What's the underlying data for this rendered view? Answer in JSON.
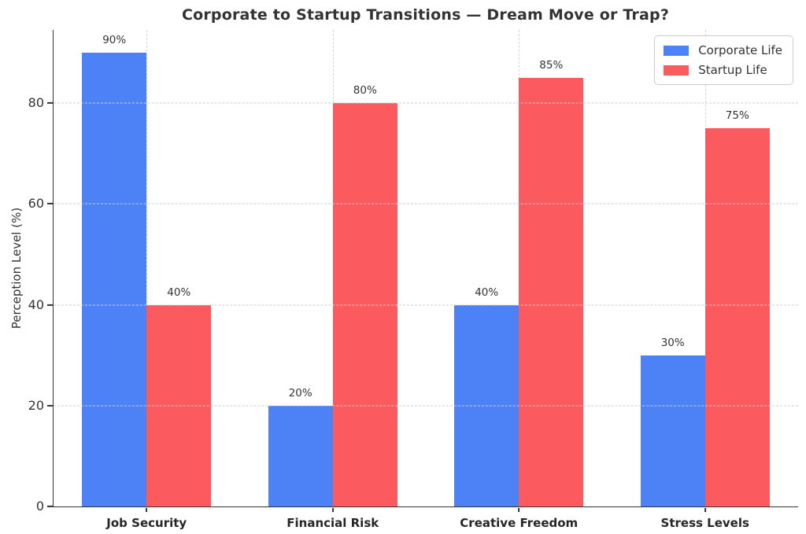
{
  "title": "Corporate to Startup Transitions — Dream Move or Trap?",
  "chart_data": {
    "type": "bar",
    "title": "Corporate to Startup Transitions — Dream Move or Trap?",
    "xlabel": "",
    "ylabel": "Perception Level (%)",
    "categories": [
      "Job Security",
      "Financial Risk",
      "Creative Freedom",
      "Stress Levels"
    ],
    "series": [
      {
        "name": "Corporate Life",
        "color": "#4D82F7",
        "values": [
          90,
          20,
          40,
          30
        ],
        "value_labels": [
          "90%",
          "20%",
          "40%",
          "30%"
        ]
      },
      {
        "name": "Startup Life",
        "color": "#FB5A5F",
        "values": [
          40,
          80,
          85,
          75
        ],
        "value_labels": [
          "40%",
          "80%",
          "85%",
          "75%"
        ]
      }
    ],
    "yticks": [
      0,
      20,
      40,
      60,
      80
    ],
    "ylim": [
      0,
      94.5
    ],
    "grid": "dashed-horizontal-and-vertical",
    "legend_position": "top-right"
  }
}
